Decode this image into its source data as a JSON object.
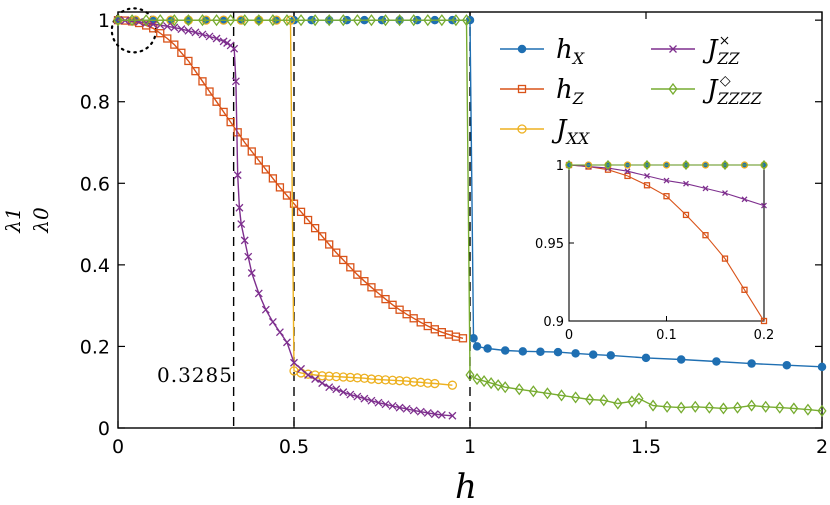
{
  "chart_data": {
    "type": "line",
    "xlabel": "h",
    "ylabel_num": "λ1",
    "ylabel_den": "λ0",
    "xlim": [
      0,
      2
    ],
    "ylim": [
      0,
      1.02
    ],
    "xticks": [
      0,
      0.5,
      1,
      1.5,
      2
    ],
    "xtick_labels": [
      "0",
      "0.5",
      "1",
      "1.5",
      "2"
    ],
    "yticks": [
      0,
      0.2,
      0.4,
      0.6,
      0.8,
      1
    ],
    "ytick_labels": [
      "0",
      "0.2",
      "0.4",
      "0.6",
      "0.8",
      "1"
    ],
    "annotation": "0.3285",
    "vlines": [
      0.3285,
      0.5,
      1
    ],
    "legend_position": "top-right",
    "series": [
      {
        "name": "hX",
        "legend_main": "h",
        "legend_sub": "X",
        "legend_sup": "",
        "color": "#1f6fb2",
        "marker": "dot",
        "x": [
          0,
          0.05,
          0.1,
          0.15,
          0.2,
          0.25,
          0.3,
          0.35,
          0.4,
          0.45,
          0.5,
          0.55,
          0.6,
          0.65,
          0.7,
          0.75,
          0.8,
          0.85,
          0.9,
          0.95,
          1.0,
          1.01,
          1.02,
          1.05,
          1.1,
          1.15,
          1.2,
          1.25,
          1.3,
          1.35,
          1.4,
          1.5,
          1.6,
          1.7,
          1.8,
          1.9,
          2.0
        ],
        "y": [
          1,
          1,
          1,
          1,
          1,
          1,
          1,
          1,
          1,
          1,
          1,
          1,
          1,
          1,
          1,
          1,
          1,
          1,
          1,
          1,
          1,
          0.22,
          0.2,
          0.195,
          0.19,
          0.188,
          0.187,
          0.186,
          0.183,
          0.18,
          0.178,
          0.172,
          0.168,
          0.163,
          0.158,
          0.154,
          0.15
        ]
      },
      {
        "name": "hZ",
        "legend_main": "h",
        "legend_sub": "Z",
        "legend_sup": "",
        "color": "#d95319",
        "marker": "square",
        "x": [
          0,
          0.02,
          0.04,
          0.06,
          0.08,
          0.1,
          0.12,
          0.14,
          0.16,
          0.18,
          0.2,
          0.22,
          0.24,
          0.26,
          0.28,
          0.3,
          0.32,
          0.34,
          0.36,
          0.38,
          0.4,
          0.42,
          0.44,
          0.46,
          0.48,
          0.5,
          0.52,
          0.54,
          0.56,
          0.58,
          0.6,
          0.62,
          0.64,
          0.66,
          0.68,
          0.7,
          0.72,
          0.74,
          0.76,
          0.78,
          0.8,
          0.82,
          0.84,
          0.86,
          0.88,
          0.9,
          0.92,
          0.94,
          0.96,
          0.98
        ],
        "y": [
          1,
          0.999,
          0.997,
          0.993,
          0.987,
          0.98,
          0.968,
          0.955,
          0.94,
          0.92,
          0.9,
          0.875,
          0.85,
          0.825,
          0.8,
          0.775,
          0.75,
          0.725,
          0.7,
          0.678,
          0.656,
          0.634,
          0.612,
          0.59,
          0.57,
          0.55,
          0.53,
          0.51,
          0.49,
          0.47,
          0.45,
          0.43,
          0.412,
          0.394,
          0.376,
          0.36,
          0.345,
          0.33,
          0.316,
          0.302,
          0.29,
          0.279,
          0.269,
          0.259,
          0.25,
          0.242,
          0.235,
          0.229,
          0.224,
          0.22
        ]
      },
      {
        "name": "JXX",
        "legend_main": "J",
        "legend_sub": "XX",
        "legend_sup": "",
        "color": "#edb120",
        "marker": "circle",
        "x": [
          0,
          0.05,
          0.1,
          0.15,
          0.2,
          0.25,
          0.3,
          0.35,
          0.4,
          0.45,
          0.49,
          0.5,
          0.52,
          0.54,
          0.56,
          0.58,
          0.6,
          0.62,
          0.64,
          0.66,
          0.68,
          0.7,
          0.72,
          0.74,
          0.76,
          0.78,
          0.8,
          0.82,
          0.84,
          0.86,
          0.88,
          0.9,
          0.95
        ],
        "y": [
          1,
          1,
          1,
          1,
          1,
          1,
          1,
          1,
          1,
          1,
          1,
          0.14,
          0.135,
          0.132,
          0.13,
          0.128,
          0.127,
          0.126,
          0.125,
          0.124,
          0.123,
          0.122,
          0.12,
          0.119,
          0.118,
          0.117,
          0.116,
          0.115,
          0.113,
          0.112,
          0.11,
          0.109,
          0.105
        ]
      },
      {
        "name": "JZZ",
        "legend_main": "J",
        "legend_sub": "ZZ",
        "legend_sup": "×",
        "color": "#7e2f8e",
        "marker": "cross",
        "x": [
          0,
          0.02,
          0.04,
          0.06,
          0.08,
          0.1,
          0.12,
          0.14,
          0.16,
          0.18,
          0.2,
          0.22,
          0.24,
          0.26,
          0.28,
          0.3,
          0.31,
          0.32,
          0.33,
          0.335,
          0.34,
          0.345,
          0.35,
          0.36,
          0.37,
          0.38,
          0.4,
          0.42,
          0.44,
          0.46,
          0.48,
          0.5,
          0.52,
          0.54,
          0.56,
          0.58,
          0.6,
          0.62,
          0.64,
          0.66,
          0.68,
          0.7,
          0.72,
          0.74,
          0.76,
          0.78,
          0.8,
          0.82,
          0.84,
          0.86,
          0.88,
          0.9,
          0.92,
          0.95
        ],
        "y": [
          1,
          0.999,
          0.998,
          0.996,
          0.993,
          0.99,
          0.988,
          0.985,
          0.982,
          0.978,
          0.974,
          0.97,
          0.965,
          0.96,
          0.955,
          0.948,
          0.944,
          0.938,
          0.93,
          0.85,
          0.62,
          0.54,
          0.5,
          0.46,
          0.42,
          0.38,
          0.33,
          0.29,
          0.26,
          0.235,
          0.21,
          0.16,
          0.145,
          0.13,
          0.12,
          0.11,
          0.1,
          0.095,
          0.088,
          0.082,
          0.077,
          0.072,
          0.067,
          0.062,
          0.058,
          0.054,
          0.05,
          0.047,
          0.043,
          0.04,
          0.037,
          0.034,
          0.032,
          0.03
        ]
      },
      {
        "name": "JZZZZ",
        "legend_main": "J",
        "legend_sub": "ZZZZ",
        "legend_sup": "◇",
        "color": "#77ac30",
        "marker": "diamond",
        "x": [
          0,
          0.04,
          0.08,
          0.12,
          0.16,
          0.2,
          0.24,
          0.28,
          0.32,
          0.36,
          0.4,
          0.44,
          0.48,
          0.52,
          0.56,
          0.6,
          0.64,
          0.68,
          0.72,
          0.76,
          0.8,
          0.84,
          0.88,
          0.92,
          0.96,
          0.99,
          1.0,
          1.02,
          1.04,
          1.06,
          1.08,
          1.1,
          1.14,
          1.18,
          1.22,
          1.26,
          1.3,
          1.34,
          1.38,
          1.42,
          1.46,
          1.48,
          1.52,
          1.56,
          1.6,
          1.64,
          1.68,
          1.72,
          1.76,
          1.8,
          1.84,
          1.88,
          1.92,
          1.96,
          2.0
        ],
        "y": [
          1,
          1,
          1,
          1,
          1,
          1,
          1,
          1,
          1,
          1,
          1,
          1,
          1,
          1,
          1,
          1,
          1,
          1,
          1,
          1,
          1,
          1,
          1,
          1,
          1,
          1,
          0.13,
          0.12,
          0.115,
          0.11,
          0.105,
          0.1,
          0.095,
          0.09,
          0.085,
          0.08,
          0.075,
          0.07,
          0.068,
          0.06,
          0.065,
          0.072,
          0.055,
          0.052,
          0.05,
          0.052,
          0.05,
          0.048,
          0.05,
          0.055,
          0.052,
          0.05,
          0.048,
          0.045,
          0.042
        ]
      }
    ],
    "inset": {
      "xlim": [
        0,
        0.2
      ],
      "ylim": [
        0.9,
        1.0
      ],
      "xticks": [
        0,
        0.1,
        0.2
      ],
      "xtick_labels": [
        "0",
        "0.1",
        "0.2"
      ],
      "yticks": [
        0.9,
        0.95,
        1
      ],
      "ytick_labels": [
        "0.9",
        "0.95",
        "1"
      ],
      "series": [
        {
          "ref": "hZ",
          "x": [
            0,
            0.02,
            0.04,
            0.06,
            0.08,
            0.1,
            0.12,
            0.14,
            0.16,
            0.18,
            0.2
          ],
          "y": [
            1,
            0.999,
            0.997,
            0.993,
            0.987,
            0.98,
            0.968,
            0.955,
            0.94,
            0.92,
            0.9
          ]
        },
        {
          "ref": "JZZ",
          "x": [
            0,
            0.02,
            0.04,
            0.06,
            0.08,
            0.1,
            0.12,
            0.14,
            0.16,
            0.18,
            0.2
          ],
          "y": [
            1,
            0.999,
            0.998,
            0.996,
            0.993,
            0.99,
            0.988,
            0.985,
            0.982,
            0.978,
            0.974
          ]
        },
        {
          "ref": "hX",
          "x": [
            0,
            0.02,
            0.04,
            0.06,
            0.08,
            0.1,
            0.12,
            0.14,
            0.16,
            0.18,
            0.2
          ],
          "y": [
            1,
            1,
            1,
            1,
            1,
            1,
            1,
            1,
            1,
            1,
            1
          ]
        },
        {
          "ref": "JXX",
          "x": [
            0,
            0.02,
            0.04,
            0.06,
            0.08,
            0.1,
            0.12,
            0.14,
            0.16,
            0.18,
            0.2
          ],
          "y": [
            1,
            1,
            1,
            1,
            1,
            1,
            1,
            1,
            1,
            1,
            1
          ]
        },
        {
          "ref": "JZZZZ",
          "x": [
            0,
            0.04,
            0.08,
            0.12,
            0.16,
            0.2
          ],
          "y": [
            1,
            1,
            1,
            1,
            1,
            1
          ]
        }
      ]
    }
  }
}
